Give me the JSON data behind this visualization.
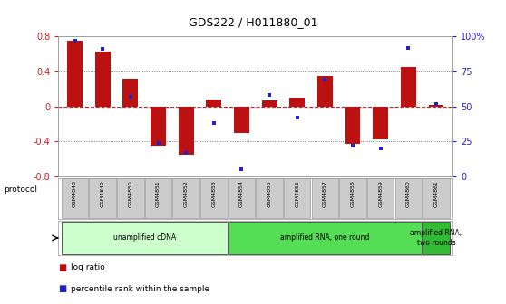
{
  "title": "GDS222 / H011880_01",
  "samples": [
    "GSM4848",
    "GSM4849",
    "GSM4850",
    "GSM4851",
    "GSM4852",
    "GSM4853",
    "GSM4854",
    "GSM4855",
    "GSM4856",
    "GSM4857",
    "GSM4858",
    "GSM4859",
    "GSM4860",
    "GSM4861"
  ],
  "log_ratio": [
    0.75,
    0.63,
    0.32,
    -0.45,
    -0.55,
    0.08,
    -0.3,
    0.07,
    0.1,
    0.35,
    -0.43,
    -0.38,
    0.45,
    0.02
  ],
  "percentile": [
    97,
    91,
    57,
    24,
    17,
    38,
    5,
    58,
    42,
    69,
    22,
    20,
    92,
    52
  ],
  "ylim_left": [
    -0.8,
    0.8
  ],
  "ylim_right": [
    0,
    100
  ],
  "bar_color": "#BB1111",
  "dot_color": "#2222CC",
  "zero_line_color": "#CC2222",
  "grid_color": "#555555",
  "left_tick_color": "#CC2222",
  "right_tick_color": "#2222CC",
  "protocols": [
    {
      "label": "unamplified cDNA",
      "start": 0,
      "end": 5,
      "color": "#ccffcc"
    },
    {
      "label": "amplified RNA, one round",
      "start": 6,
      "end": 12,
      "color": "#55dd55"
    },
    {
      "label": "amplified RNA,\ntwo rounds",
      "start": 13,
      "end": 13,
      "color": "#33bb33"
    }
  ],
  "legend_items": [
    {
      "color": "#BB1111",
      "label": "log ratio"
    },
    {
      "color": "#2222CC",
      "label": "percentile rank within the sample"
    }
  ]
}
